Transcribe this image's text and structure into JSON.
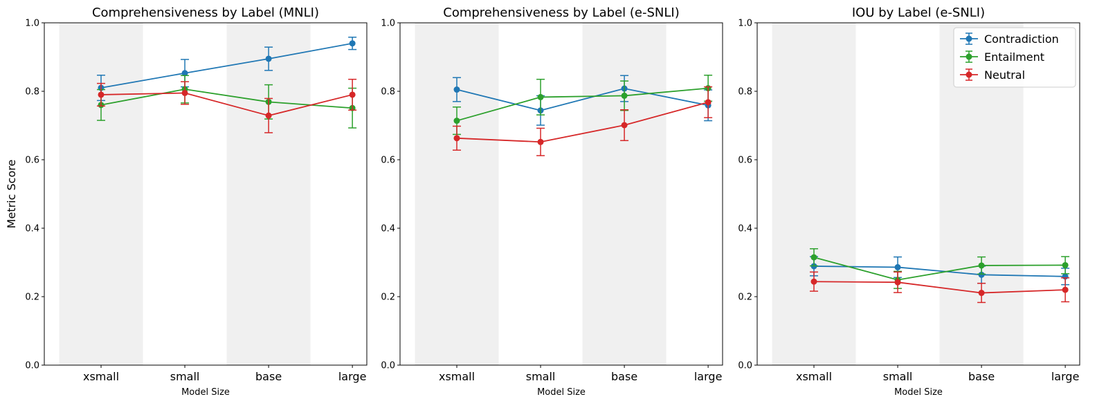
{
  "chart_data": [
    {
      "type": "line",
      "title": "Comprehensiveness by Label (MNLI)",
      "xlabel": "Model Size",
      "ylabel": "Metric Score",
      "categories": [
        "xsmall",
        "small",
        "base",
        "large"
      ],
      "ylim": [
        0,
        1
      ],
      "yticks": [
        "0.0",
        "0.2",
        "0.4",
        "0.6",
        "0.8",
        "1.0"
      ],
      "series": [
        {
          "name": "Contradiction",
          "color": "#1f77b4",
          "values": [
            0.81,
            0.853,
            0.895,
            0.94
          ],
          "errors": [
            0.037,
            0.04,
            0.034,
            0.018
          ]
        },
        {
          "name": "Entailment",
          "color": "#2ca02c",
          "values": [
            0.76,
            0.806,
            0.769,
            0.751
          ],
          "errors": [
            0.045,
            0.04,
            0.05,
            0.058
          ]
        },
        {
          "name": "Neutral",
          "color": "#d62728",
          "values": [
            0.79,
            0.795,
            0.729,
            0.79
          ],
          "errors": [
            0.033,
            0.033,
            0.05,
            0.045
          ]
        }
      ]
    },
    {
      "type": "line",
      "title": "Comprehensiveness by Label (e-SNLI)",
      "xlabel": "Model Size",
      "ylabel": "",
      "categories": [
        "xsmall",
        "small",
        "base",
        "large"
      ],
      "ylim": [
        0,
        1
      ],
      "yticks": [
        "0.0",
        "0.2",
        "0.4",
        "0.6",
        "0.8",
        "1.0"
      ],
      "series": [
        {
          "name": "Contradiction",
          "color": "#1f77b4",
          "values": [
            0.805,
            0.744,
            0.808,
            0.759
          ],
          "errors": [
            0.035,
            0.043,
            0.038,
            0.045
          ]
        },
        {
          "name": "Entailment",
          "color": "#2ca02c",
          "values": [
            0.714,
            0.783,
            0.787,
            0.809
          ],
          "errors": [
            0.04,
            0.052,
            0.043,
            0.038
          ]
        },
        {
          "name": "Neutral",
          "color": "#d62728",
          "values": [
            0.663,
            0.652,
            0.701,
            0.768
          ],
          "errors": [
            0.035,
            0.04,
            0.045,
            0.045
          ]
        }
      ]
    },
    {
      "type": "line",
      "title": "IOU by Label (e-SNLI)",
      "xlabel": "Model Size",
      "ylabel": "",
      "categories": [
        "xsmall",
        "small",
        "base",
        "large"
      ],
      "ylim": [
        0,
        1
      ],
      "yticks": [
        "0.0",
        "0.2",
        "0.4",
        "0.6",
        "0.8",
        "1.0"
      ],
      "legend": {
        "position": "top-right",
        "entries": [
          "Contradiction",
          "Entailment",
          "Neutral"
        ]
      },
      "series": [
        {
          "name": "Contradiction",
          "color": "#1f77b4",
          "values": [
            0.289,
            0.286,
            0.264,
            0.259
          ],
          "errors": [
            0.028,
            0.03,
            0.025,
            0.024
          ]
        },
        {
          "name": "Entailment",
          "color": "#2ca02c",
          "values": [
            0.315,
            0.249,
            0.291,
            0.292
          ],
          "errors": [
            0.025,
            0.025,
            0.025,
            0.025
          ]
        },
        {
          "name": "Neutral",
          "color": "#d62728",
          "values": [
            0.244,
            0.242,
            0.211,
            0.22
          ],
          "errors": [
            0.028,
            0.03,
            0.028,
            0.035
          ]
        }
      ]
    }
  ]
}
